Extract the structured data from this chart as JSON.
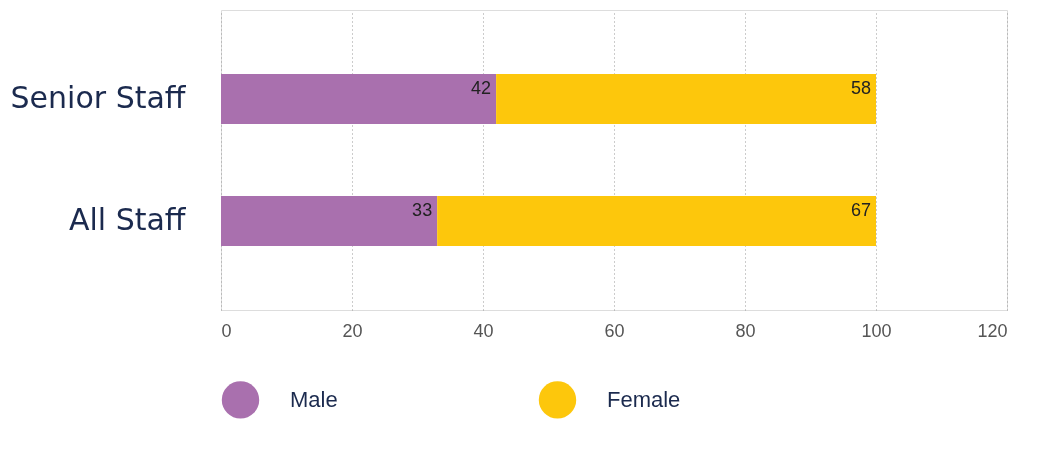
{
  "chart_data": {
    "type": "bar",
    "orientation": "horizontal",
    "stacked": true,
    "categories": [
      "Senior Staff",
      "All Staff"
    ],
    "series": [
      {
        "name": "Male",
        "color": "#a970ae",
        "values": [
          42,
          33
        ]
      },
      {
        "name": "Female",
        "color": "#fdc70c",
        "values": [
          58,
          67
        ]
      }
    ],
    "xlim": [
      0,
      120
    ],
    "xticks": [
      0,
      20,
      40,
      60,
      80,
      100,
      120
    ],
    "grid": "x",
    "legend": "bottom",
    "data_labels": true
  }
}
